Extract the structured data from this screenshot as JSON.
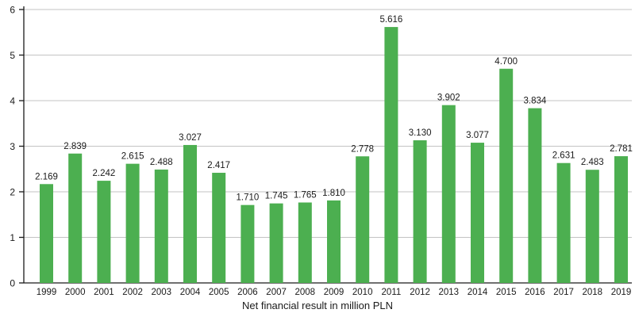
{
  "chart_data": {
    "type": "bar",
    "title": "",
    "xlabel": "Net financial result in million PLN",
    "ylabel": "",
    "ylim": [
      0,
      6
    ],
    "y_ticks": [
      0,
      1,
      2,
      3,
      4,
      5,
      6
    ],
    "grid": true,
    "legend": false,
    "bar_color": "#4caf50",
    "grid_color": "#c3c3c3",
    "axis_color": "#1a1a1a",
    "categories": [
      "1999",
      "2000",
      "2001",
      "2002",
      "2003",
      "2004",
      "2005",
      "2006",
      "2007",
      "2008",
      "2009",
      "2010",
      "2011",
      "2012",
      "2013",
      "2014",
      "2015",
      "2016",
      "2017",
      "2018",
      "2019"
    ],
    "values": [
      2.169,
      2.839,
      2.242,
      2.615,
      2.488,
      3.027,
      2.417,
      1.71,
      1.745,
      1.765,
      1.81,
      2.778,
      5.616,
      3.13,
      3.902,
      3.077,
      4.7,
      3.834,
      2.631,
      2.483,
      2.781
    ],
    "value_labels": [
      "2.169",
      "2.839",
      "2.242",
      "2.615",
      "2.488",
      "3.027",
      "2.417",
      "1.710",
      "1.745",
      "1.765",
      "1.810",
      "2.778",
      "5.616",
      "3.130",
      "3.902",
      "3.077",
      "4.700",
      "3.834",
      "2.631",
      "2.483",
      "2.781"
    ]
  }
}
